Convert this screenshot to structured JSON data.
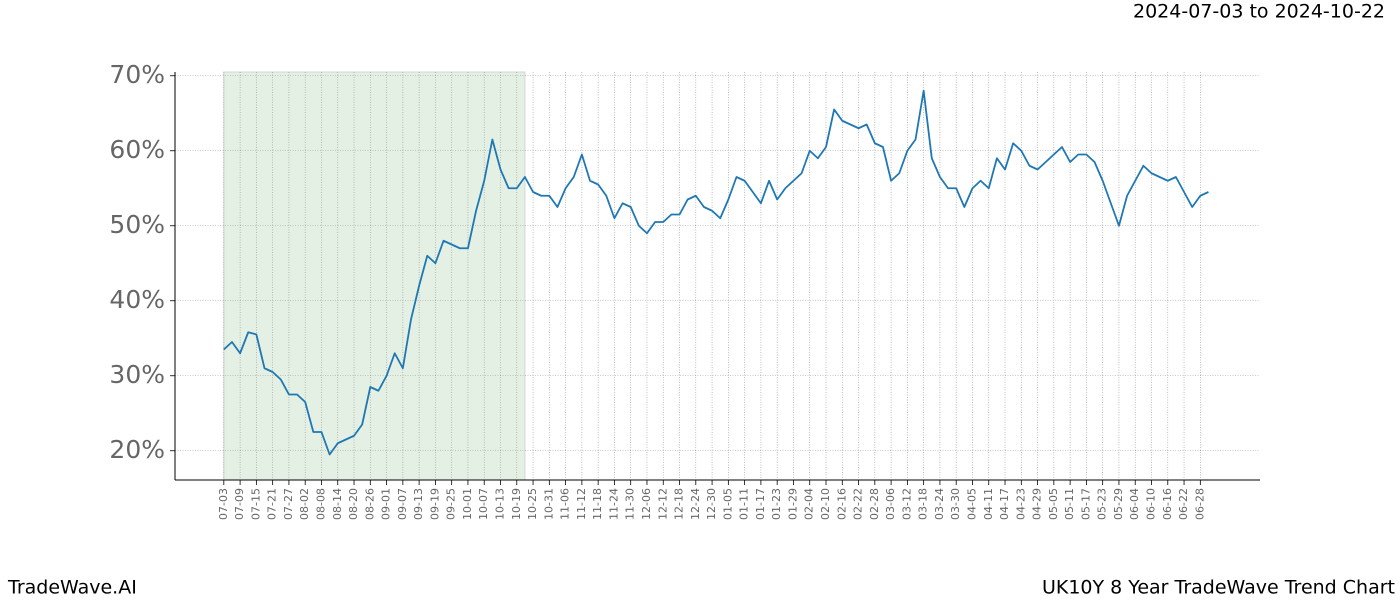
{
  "chart_data": {
    "type": "line",
    "title": "UK10Y 8 Year TradeWave Trend Chart",
    "brand": "TradeWave.AI",
    "highlight": {
      "label": "2024-07-03 to 2024-10-22",
      "start": 0,
      "end": 111,
      "color": "#c8e2c8"
    },
    "xlim": [
      -18,
      382
    ],
    "ylim": [
      16.1,
      70.5
    ],
    "grid": true,
    "yticks": [
      {
        "value": 20,
        "label": "20%"
      },
      {
        "value": 30,
        "label": "30%"
      },
      {
        "value": 40,
        "label": "40%"
      },
      {
        "value": 50,
        "label": "50%"
      },
      {
        "value": 60,
        "label": "60%"
      },
      {
        "value": 70,
        "label": "70%"
      }
    ],
    "xticks": [
      {
        "value": 0,
        "label": "07-03"
      },
      {
        "value": 6,
        "label": "07-09"
      },
      {
        "value": 12,
        "label": "07-15"
      },
      {
        "value": 18,
        "label": "07-21"
      },
      {
        "value": 24,
        "label": "07-27"
      },
      {
        "value": 30,
        "label": "08-02"
      },
      {
        "value": 36,
        "label": "08-08"
      },
      {
        "value": 42,
        "label": "08-14"
      },
      {
        "value": 48,
        "label": "08-20"
      },
      {
        "value": 54,
        "label": "08-26"
      },
      {
        "value": 60,
        "label": "09-01"
      },
      {
        "value": 66,
        "label": "09-07"
      },
      {
        "value": 72,
        "label": "09-13"
      },
      {
        "value": 78,
        "label": "09-19"
      },
      {
        "value": 84,
        "label": "09-25"
      },
      {
        "value": 90,
        "label": "10-01"
      },
      {
        "value": 96,
        "label": "10-07"
      },
      {
        "value": 102,
        "label": "10-13"
      },
      {
        "value": 108,
        "label": "10-19"
      },
      {
        "value": 114,
        "label": "10-25"
      },
      {
        "value": 120,
        "label": "10-31"
      },
      {
        "value": 126,
        "label": "11-06"
      },
      {
        "value": 132,
        "label": "11-12"
      },
      {
        "value": 138,
        "label": "11-18"
      },
      {
        "value": 144,
        "label": "11-24"
      },
      {
        "value": 150,
        "label": "11-30"
      },
      {
        "value": 156,
        "label": "12-06"
      },
      {
        "value": 162,
        "label": "12-12"
      },
      {
        "value": 168,
        "label": "12-18"
      },
      {
        "value": 174,
        "label": "12-24"
      },
      {
        "value": 180,
        "label": "12-30"
      },
      {
        "value": 186,
        "label": "01-05"
      },
      {
        "value": 192,
        "label": "01-11"
      },
      {
        "value": 198,
        "label": "01-17"
      },
      {
        "value": 204,
        "label": "01-23"
      },
      {
        "value": 210,
        "label": "01-29"
      },
      {
        "value": 216,
        "label": "02-04"
      },
      {
        "value": 222,
        "label": "02-10"
      },
      {
        "value": 228,
        "label": "02-16"
      },
      {
        "value": 234,
        "label": "02-22"
      },
      {
        "value": 240,
        "label": "02-28"
      },
      {
        "value": 246,
        "label": "03-06"
      },
      {
        "value": 252,
        "label": "03-12"
      },
      {
        "value": 258,
        "label": "03-18"
      },
      {
        "value": 264,
        "label": "03-24"
      },
      {
        "value": 270,
        "label": "03-30"
      },
      {
        "value": 276,
        "label": "04-05"
      },
      {
        "value": 282,
        "label": "04-11"
      },
      {
        "value": 288,
        "label": "04-17"
      },
      {
        "value": 294,
        "label": "04-23"
      },
      {
        "value": 300,
        "label": "04-29"
      },
      {
        "value": 306,
        "label": "05-05"
      },
      {
        "value": 312,
        "label": "05-11"
      },
      {
        "value": 318,
        "label": "05-17"
      },
      {
        "value": 324,
        "label": "05-23"
      },
      {
        "value": 330,
        "label": "05-29"
      },
      {
        "value": 336,
        "label": "06-04"
      },
      {
        "value": 342,
        "label": "06-10"
      },
      {
        "value": 348,
        "label": "06-16"
      },
      {
        "value": 354,
        "label": "06-22"
      },
      {
        "value": 360,
        "label": "06-28"
      }
    ],
    "x": [
      0,
      3,
      6,
      9,
      12,
      15,
      18,
      21,
      24,
      27,
      30,
      33,
      36,
      39,
      42,
      45,
      48,
      51,
      54,
      57,
      60,
      63,
      66,
      69,
      72,
      75,
      78,
      81,
      84,
      87,
      90,
      93,
      96,
      99,
      102,
      105,
      108,
      111,
      114,
      117,
      120,
      123,
      126,
      129,
      132,
      135,
      138,
      141,
      144,
      147,
      150,
      153,
      156,
      159,
      162,
      165,
      168,
      171,
      174,
      177,
      180,
      183,
      186,
      189,
      192,
      195,
      198,
      201,
      204,
      207,
      210,
      213,
      216,
      219,
      222,
      225,
      228,
      231,
      234,
      237,
      240,
      243,
      246,
      249,
      252,
      255,
      258,
      261,
      264,
      267,
      270,
      273,
      276,
      279,
      282,
      285,
      288,
      291,
      294,
      297,
      300,
      303,
      306,
      309,
      312,
      315,
      318,
      321,
      324,
      327,
      330,
      333,
      336,
      339,
      342,
      345,
      348,
      351,
      354,
      357,
      360,
      363
    ],
    "series": [
      {
        "color": "#1f77b4",
        "values": [
          33.5,
          34.5,
          33,
          35.8,
          35.5,
          31,
          30.5,
          29.5,
          27.5,
          27.5,
          26.5,
          22.5,
          22.5,
          19.5,
          21,
          21.5,
          22,
          23.5,
          28.5,
          28,
          30,
          33,
          31,
          37.5,
          42,
          46,
          45,
          48,
          47.5,
          47,
          47,
          52,
          56,
          61.5,
          57.5,
          55,
          55,
          56.5,
          54.5,
          54,
          54,
          52.5,
          55,
          56.5,
          59.5,
          56,
          55.5,
          54,
          51,
          53,
          52.5,
          50,
          49,
          50.5,
          50.5,
          51.5,
          51.5,
          53.5,
          54,
          52.5,
          52,
          51,
          53.5,
          56.5,
          56,
          54.5,
          53,
          56,
          53.5,
          55,
          56,
          57,
          60,
          59,
          60.5,
          65.5,
          64,
          63.5,
          63,
          63.5,
          61,
          60.5,
          56,
          57,
          60,
          61.5,
          68,
          59,
          56.5,
          55,
          55,
          52.5,
          55,
          56,
          55,
          59,
          57.5,
          61,
          60,
          58,
          57.5,
          58.5,
          59.5,
          60.5,
          58.5,
          59.5,
          59.5,
          58.5,
          56,
          53,
          50,
          54,
          56,
          58,
          57,
          56.5,
          56,
          56.5,
          54.5,
          52.5,
          54,
          54.5
        ]
      }
    ]
  }
}
